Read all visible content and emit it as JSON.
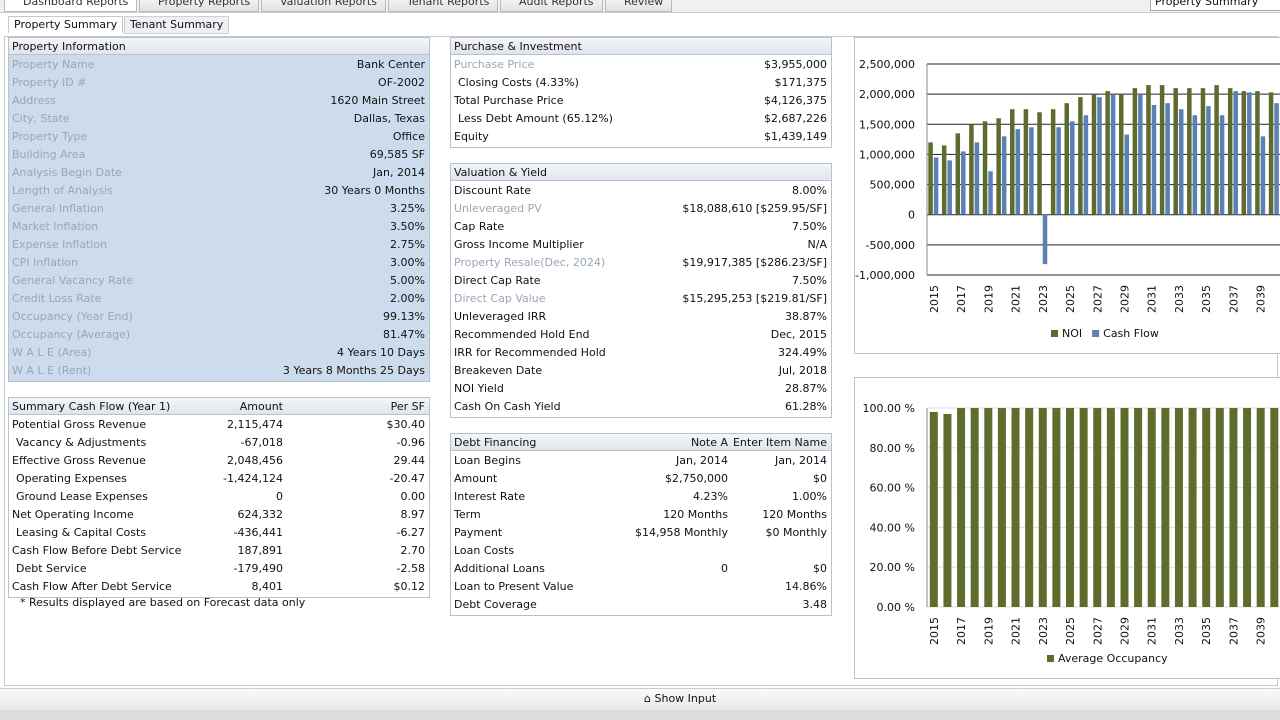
{
  "top_tabs": [
    "Dashboard Reports",
    "Property Reports",
    "Valuation Reports",
    "Tenant Reports",
    "Audit Reports",
    "Review"
  ],
  "report_select": "Property Summary",
  "sub_tabs": [
    "Property Summary",
    "Tenant Summary"
  ],
  "property_info": {
    "title": "Property Information",
    "rows": [
      {
        "label": "Property Name",
        "value": "Bank Center"
      },
      {
        "label": "Property ID #",
        "value": "OF-2002"
      },
      {
        "label": "Address",
        "value": "1620 Main Street"
      },
      {
        "label": "City, State",
        "value": "Dallas, Texas"
      },
      {
        "label": "Property Type",
        "value": "Office"
      },
      {
        "label": "Building Area",
        "value": "69,585 SF"
      },
      {
        "label": "Analysis Begin Date",
        "value": "Jan, 2014"
      },
      {
        "label": "Length of Analysis",
        "value": "30 Years 0 Months"
      },
      {
        "label": "General Inflation",
        "value": "3.25%"
      },
      {
        "label": "Market Inflation",
        "value": "3.50%"
      },
      {
        "label": "Expense Inflation",
        "value": "2.75%"
      },
      {
        "label": "CPI Inflation",
        "value": "3.00%"
      },
      {
        "label": "General Vacancy Rate",
        "value": "5.00%"
      },
      {
        "label": "Credit Loss Rate",
        "value": "2.00%"
      },
      {
        "label": "Occupancy (Year End)",
        "value": "99.13%"
      },
      {
        "label": "Occupancy (Average)",
        "value": "81.47%"
      },
      {
        "label": "W A L E (Area)",
        "value": "4 Years 10 Days"
      },
      {
        "label": "W A L E (Rent)",
        "value": "3 Years 8 Months 25 Days"
      }
    ]
  },
  "purchase": {
    "title": "Purchase & Investment",
    "rows": [
      {
        "label": "Purchase Price",
        "value": "$3,955,000",
        "muted": true
      },
      {
        "label": "Closing Costs (4.33%)",
        "value": "$171,375",
        "indent": true
      },
      {
        "label": "Total Purchase Price",
        "value": "$4,126,375"
      },
      {
        "label": "Less Debt Amount (65.12%)",
        "value": "$2,687,226",
        "indent": true
      },
      {
        "label": "Equity",
        "value": "$1,439,149"
      }
    ]
  },
  "valuation": {
    "title": "Valuation & Yield",
    "rows": [
      {
        "label": "Discount Rate",
        "value": "8.00%"
      },
      {
        "label": "Unleveraged PV",
        "value": "$18,088,610 [$259.95/SF]",
        "muted": true
      },
      {
        "label": "Cap Rate",
        "value": "7.50%"
      },
      {
        "label": "Gross Income Multiplier",
        "value": "N/A"
      },
      {
        "label": "Property Resale(Dec, 2024)",
        "value": "$19,917,385 [$286.23/SF]",
        "muted": true
      },
      {
        "label": "Direct Cap Rate",
        "value": "7.50%"
      },
      {
        "label": "Direct Cap Value",
        "value": "$15,295,253 [$219.81/SF]",
        "muted": true
      },
      {
        "label": "Unleveraged IRR",
        "value": "38.87%"
      },
      {
        "label": "Recommended Hold End",
        "value": "Dec, 2015"
      },
      {
        "label": "IRR for Recommended Hold",
        "value": "324.49%"
      },
      {
        "label": "Breakeven Date",
        "value": "Jul, 2018"
      },
      {
        "label": "NOI Yield",
        "value": "28.87%"
      },
      {
        "label": "Cash On Cash Yield",
        "value": "61.28%"
      }
    ]
  },
  "cash_flow": {
    "headers": {
      "label": "Summary Cash Flow (Year 1)",
      "amount": "Amount",
      "per_sf": "Per SF"
    },
    "rows": [
      {
        "label": "Potential Gross Revenue",
        "amount": "2,115,474",
        "per_sf": "$30.40"
      },
      {
        "label": "Vacancy & Adjustments",
        "amount": "-67,018",
        "per_sf": "-0.96",
        "indent": true
      },
      {
        "label": "Effective Gross Revenue",
        "amount": "2,048,456",
        "per_sf": "29.44"
      },
      {
        "label": "Operating Expenses",
        "amount": "-1,424,124",
        "per_sf": "-20.47",
        "indent": true
      },
      {
        "label": "Ground Lease Expenses",
        "amount": "0",
        "per_sf": "0.00",
        "indent": true
      },
      {
        "label": "Net Operating Income",
        "amount": "624,332",
        "per_sf": "8.97"
      },
      {
        "label": "Leasing & Capital Costs",
        "amount": "-436,441",
        "per_sf": "-6.27",
        "indent": true
      },
      {
        "label": "Cash Flow Before Debt Service",
        "amount": "187,891",
        "per_sf": "2.70"
      },
      {
        "label": "Debt Service",
        "amount": "-179,490",
        "per_sf": "-2.58",
        "indent": true
      },
      {
        "label": "Cash Flow After Debt Service",
        "amount": "8,401",
        "per_sf": "$0.12"
      }
    ],
    "note": "* Results displayed are based on Forecast data only"
  },
  "debt": {
    "headers": {
      "label": "Debt Financing",
      "note_a": "Note A",
      "item_name": "Enter Item Name"
    },
    "rows": [
      {
        "label": "Loan Begins",
        "note_a": "Jan, 2014",
        "item_name": "Jan, 2014"
      },
      {
        "label": "Amount",
        "note_a": "$2,750,000",
        "item_name": "$0"
      },
      {
        "label": "Interest Rate",
        "note_a": "4.23%",
        "item_name": "1.00%"
      },
      {
        "label": "Term",
        "note_a": "120 Months",
        "item_name": "120 Months"
      },
      {
        "label": "Payment",
        "note_a": "$14,958 Monthly",
        "item_name": "$0 Monthly"
      },
      {
        "label": "Loan Costs"
      },
      {
        "label": "Additional Loans",
        "note_a": "0",
        "item_name": "$0"
      },
      {
        "label": "Loan to Present Value",
        "item_name": "14.86%"
      },
      {
        "label": "Debt Coverage",
        "item_name": "3.48"
      }
    ]
  },
  "show_input": "Show Input",
  "chart_data": [
    {
      "type": "bar",
      "categories": [
        "2015",
        null,
        "2017",
        null,
        "2019",
        null,
        "2021",
        null,
        "2023",
        null,
        "2025",
        null,
        "2027",
        null,
        "2029",
        null,
        "2031",
        null,
        "2033",
        null,
        "2035",
        null,
        "2037",
        null,
        "2039",
        null
      ],
      "series": [
        {
          "name": "NOI",
          "color": "#5d6b2f",
          "values": [
            1200000,
            1150000,
            1350000,
            1500000,
            1550000,
            1600000,
            1750000,
            1750000,
            1700000,
            1750000,
            1850000,
            1950000,
            2000000,
            2050000,
            2000000,
            2100000,
            2150000,
            2150000,
            2100000,
            2100000,
            2100000,
            2150000,
            2100000,
            2050000,
            2050000,
            2030000
          ]
        },
        {
          "name": "Cash Flow",
          "color": "#5b80b4",
          "values": [
            950000,
            900000,
            1050000,
            1200000,
            720000,
            1300000,
            1420000,
            1450000,
            -820000,
            1450000,
            1550000,
            1650000,
            1950000,
            2000000,
            1330000,
            2000000,
            1820000,
            1850000,
            1750000,
            1650000,
            1800000,
            1650000,
            2050000,
            2030000,
            1300000,
            1850000
          ]
        }
      ],
      "ylim": [
        -1000000,
        2500000
      ],
      "yticks": [
        {
          "value": 2500000,
          "label": "2,500,000"
        },
        {
          "value": 2000000,
          "label": "2,000,000"
        },
        {
          "value": 1500000,
          "label": "1,500,000"
        },
        {
          "value": 1000000,
          "label": "1,000,000"
        },
        {
          "value": 500000,
          "label": "500,000"
        },
        0,
        {
          "value": -500000,
          "label": "-500,000"
        },
        {
          "value": -1000000,
          "label": "-1,000,000"
        }
      ],
      "grid": true
    },
    {
      "type": "bar",
      "categories": [
        "2015",
        null,
        "2017",
        null,
        "2019",
        null,
        "2021",
        null,
        "2023",
        null,
        "2025",
        null,
        "2027",
        null,
        "2029",
        null,
        "2031",
        null,
        "2033",
        null,
        "2035",
        null,
        "2037",
        null,
        "2039",
        null
      ],
      "series": [
        {
          "name": "Average Occupancy",
          "color": "#5e6d2c",
          "values": [
            98,
            97,
            100,
            100,
            100,
            100,
            100,
            100,
            100,
            100,
            100,
            100,
            100,
            100,
            100,
            100,
            100,
            100,
            100,
            100,
            100,
            100,
            100,
            100,
            100,
            100
          ]
        }
      ],
      "ylim": [
        0,
        100
      ],
      "yticks": [
        {
          "value": 100,
          "label": "100.00 %"
        },
        {
          "value": 80,
          "label": "80.00 %"
        },
        {
          "value": 60,
          "label": "60.00 %"
        },
        {
          "value": 40,
          "label": "40.00 %"
        },
        {
          "value": 20,
          "label": "20.00 %"
        },
        {
          "value": 0,
          "label": "0.00 %"
        }
      ],
      "grid": true
    }
  ]
}
